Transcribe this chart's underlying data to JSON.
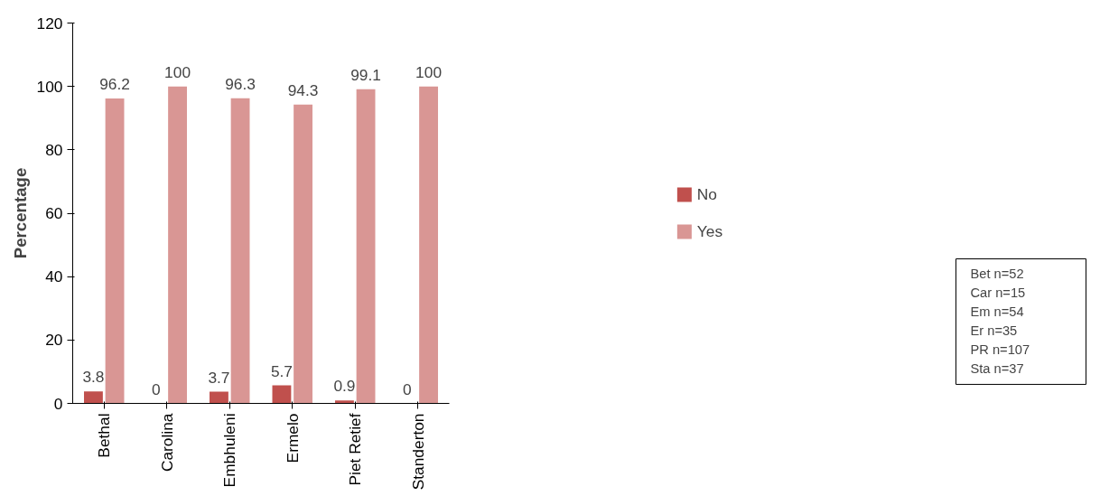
{
  "chart_data": {
    "type": "bar",
    "ylabel": "Percentage",
    "categories": [
      "Bethal",
      "Carolina",
      "Embhuleni",
      "Ermelo",
      "Piet Retief",
      "Standerton"
    ],
    "series": [
      {
        "name": "No",
        "color": "#c0504d",
        "values": [
          3.8,
          0,
          3.7,
          5.7,
          0.9,
          0
        ]
      },
      {
        "name": "Yes",
        "color": "#d99694",
        "values": [
          96.2,
          100,
          96.3,
          94.3,
          99.1,
          100
        ]
      }
    ],
    "ylim": [
      0,
      120
    ],
    "yticks": [
      0,
      20,
      40,
      60,
      80,
      100,
      120
    ],
    "grid": false,
    "legend": "right",
    "data_labels": true,
    "annotations": [
      "Bet n=52",
      "Car n=15",
      "Em n=54",
      "Er n=35",
      "PR n=107",
      "Sta n=37"
    ]
  }
}
